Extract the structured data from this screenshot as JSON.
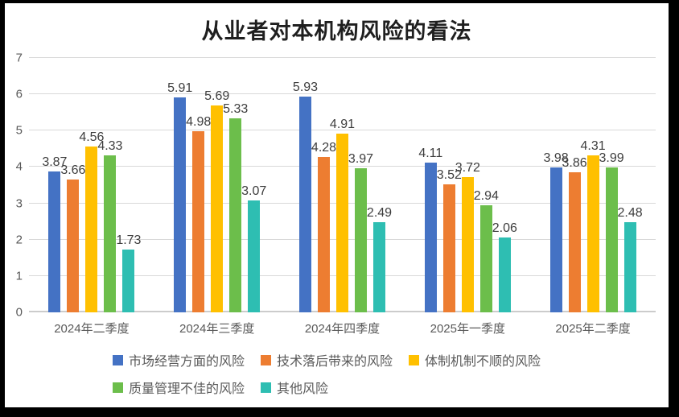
{
  "title": "从业者对本机构风险的看法",
  "chart_data": {
    "type": "bar",
    "title": "从业者对本机构风险的看法",
    "categories": [
      "2024年二季度",
      "2024年三季度",
      "2024年四季度",
      "2025年一季度",
      "2025年二季度"
    ],
    "series": [
      {
        "name": "市场经营方面的风险",
        "color": "#4472C4",
        "values": [
          3.87,
          5.91,
          5.93,
          4.11,
          3.98
        ]
      },
      {
        "name": "技术落后带来的风险",
        "color": "#ED7D31",
        "values": [
          3.66,
          4.98,
          4.28,
          3.52,
          3.86
        ]
      },
      {
        "name": "体制机制不顺的风险",
        "color": "#FFC000",
        "values": [
          4.56,
          5.69,
          4.91,
          3.72,
          4.31
        ]
      },
      {
        "name": "质量管理不佳的风险",
        "color": "#6CBE4B",
        "values": [
          4.33,
          5.33,
          3.97,
          2.94,
          3.99
        ]
      },
      {
        "name": "其他风险",
        "color": "#2EBEB2",
        "values": [
          1.73,
          3.07,
          2.49,
          2.06,
          2.48
        ]
      }
    ],
    "ylim": [
      0,
      7
    ],
    "yticks": [
      0,
      1,
      2,
      3,
      4,
      5,
      6,
      7
    ],
    "grid": "horizontal",
    "data_labels": true,
    "data_label_decimals": 2,
    "legend_position": "bottom",
    "legend_rows": [
      [
        0,
        1,
        2
      ],
      [
        3,
        4
      ]
    ]
  },
  "colors": {
    "background": "#FFFFFF",
    "frame_border": "#000000",
    "gridline": "#D9D9D9",
    "axis_text": "#595959",
    "data_label_text": "#3D3D3D",
    "title_text": "#1F1F1F"
  }
}
